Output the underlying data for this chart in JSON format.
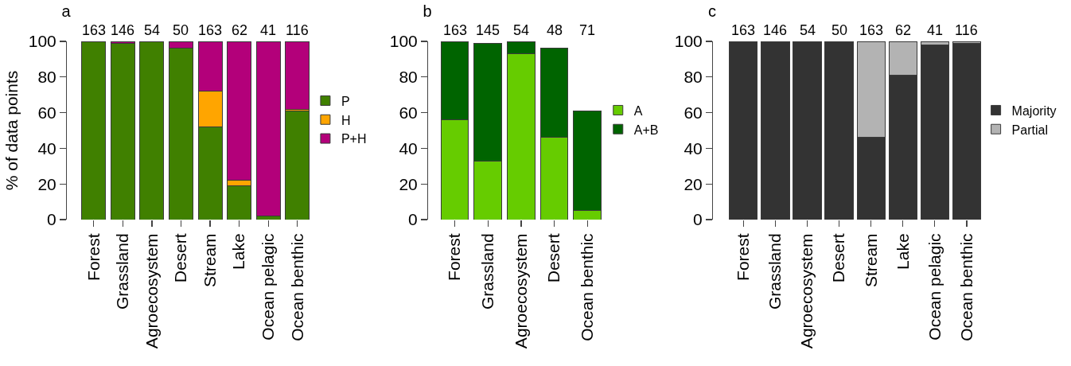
{
  "chart_data": [
    {
      "type": "bar",
      "title": "a",
      "ylabel": "% of data points",
      "categories": [
        "Forest",
        "Grassland",
        "Agroecosystem",
        "Desert",
        "Stream",
        "Lake",
        "Ocean pelagic",
        "Ocean benthic"
      ],
      "series": [
        {
          "name": "P",
          "color": "#408000",
          "values": [
            100,
            99,
            100,
            96,
            52,
            19,
            2,
            61
          ]
        },
        {
          "name": "H",
          "color": "#ffa500",
          "values": [
            null,
            null,
            null,
            null,
            20,
            3,
            null,
            1
          ]
        },
        {
          "name": "P+H",
          "color": "#b3007a",
          "values": [
            null,
            1,
            null,
            4,
            28,
            78,
            98,
            38
          ]
        }
      ],
      "stacked": true,
      "ylim": [
        0,
        100
      ],
      "yticks": [
        0,
        20,
        40,
        60,
        80,
        100
      ],
      "legend": "right",
      "annotations": [
        "163",
        "146",
        "54",
        "50",
        "163",
        "62",
        "41",
        "116"
      ]
    },
    {
      "type": "bar",
      "title": "b",
      "categories": [
        "Forest",
        "Grassland",
        "Agroecosystem",
        "Desert",
        "Ocean benthic"
      ],
      "series": [
        {
          "name": "A",
          "color": "#66cc00",
          "values": [
            56,
            33,
            93,
            46,
            5
          ]
        },
        {
          "name": "A+B",
          "color": "#006400",
          "values": [
            44,
            66,
            7,
            50,
            56
          ]
        }
      ],
      "stacked": true,
      "ylim": [
        0,
        100
      ],
      "yticks": [
        0,
        20,
        40,
        60,
        80,
        100
      ],
      "legend": "right",
      "annotations": [
        "163",
        "145",
        "54",
        "48",
        "71"
      ]
    },
    {
      "type": "bar",
      "title": "c",
      "categories": [
        "Forest",
        "Grassland",
        "Agroecosystem",
        "Desert",
        "Stream",
        "Lake",
        "Ocean pelagic",
        "Ocean benthic"
      ],
      "series": [
        {
          "name": "Majority",
          "color": "#333333",
          "values": [
            100,
            100,
            100,
            100,
            46,
            81,
            98,
            99
          ]
        },
        {
          "name": "Partial",
          "color": "#b3b3b3",
          "values": [
            null,
            null,
            null,
            null,
            54,
            19,
            2,
            1
          ]
        }
      ],
      "stacked": true,
      "ylim": [
        0,
        100
      ],
      "yticks": [
        0,
        20,
        40,
        60,
        80,
        100
      ],
      "legend": "right",
      "annotations": [
        "163",
        "146",
        "54",
        "50",
        "163",
        "62",
        "41",
        "116"
      ]
    }
  ]
}
